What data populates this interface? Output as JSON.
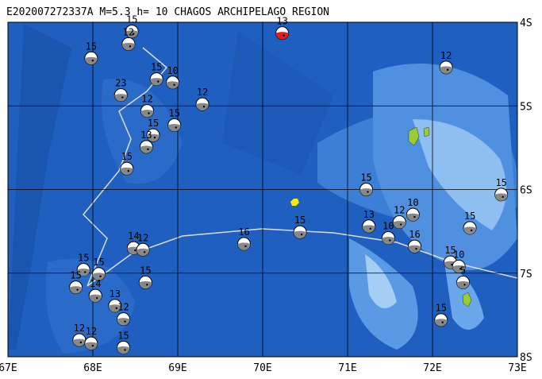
{
  "title": "E202007272337A  M=5.3 h= 10 CHAGOS ARCHIPELAGO REGION",
  "x_labels": [
    "67E",
    "68E",
    "69E",
    "70E",
    "71E",
    "72E",
    "73E"
  ],
  "y_labels": [
    "4S",
    "5S",
    "6S",
    "7S",
    "8S"
  ],
  "events": [
    {
      "label": "13",
      "lon": 70.23,
      "lat": -4.13,
      "color": "#e02020"
    },
    {
      "label": "15",
      "lon": 67.98,
      "lat": -4.43
    },
    {
      "label": "15",
      "lon": 68.46,
      "lat": -4.11
    },
    {
      "label": "12",
      "lon": 68.42,
      "lat": -4.26
    },
    {
      "label": "23",
      "lon": 68.33,
      "lat": -4.87
    },
    {
      "label": "10",
      "lon": 68.94,
      "lat": -4.72
    },
    {
      "label": "15",
      "lon": 68.75,
      "lat": -4.68
    },
    {
      "label": "12",
      "lon": 69.29,
      "lat": -4.98
    },
    {
      "label": "15",
      "lon": 68.96,
      "lat": -5.23
    },
    {
      "label": "12",
      "lon": 68.64,
      "lat": -5.06
    },
    {
      "label": "15",
      "lon": 68.71,
      "lat": -5.35
    },
    {
      "label": "15",
      "lon": 68.4,
      "lat": -5.75
    },
    {
      "label": "13",
      "lon": 68.63,
      "lat": -5.49
    },
    {
      "label": "12",
      "lon": 72.16,
      "lat": -4.54
    },
    {
      "label": "15",
      "lon": 71.22,
      "lat": -6.0
    },
    {
      "label": "15",
      "lon": 72.81,
      "lat": -6.06
    },
    {
      "label": "10",
      "lon": 71.77,
      "lat": -6.3
    },
    {
      "label": "12",
      "lon": 71.61,
      "lat": -6.39
    },
    {
      "label": "13",
      "lon": 71.25,
      "lat": -6.44
    },
    {
      "label": "15",
      "lon": 70.44,
      "lat": -6.51
    },
    {
      "label": "16",
      "lon": 69.78,
      "lat": -6.65
    },
    {
      "label": "15",
      "lon": 72.44,
      "lat": -6.46
    },
    {
      "label": "16",
      "lon": 71.79,
      "lat": -6.68
    },
    {
      "label": "10",
      "lon": 71.48,
      "lat": -6.58
    },
    {
      "label": "14",
      "lon": 68.48,
      "lat": -6.7
    },
    {
      "label": "12",
      "lon": 68.59,
      "lat": -6.72
    },
    {
      "label": "15",
      "lon": 68.62,
      "lat": -7.11
    },
    {
      "label": "15",
      "lon": 72.21,
      "lat": -6.87
    },
    {
      "label": "10",
      "lon": 72.31,
      "lat": -6.92
    },
    {
      "label": "5",
      "lon": 72.36,
      "lat": -7.11
    },
    {
      "label": "15",
      "lon": 67.89,
      "lat": -6.96
    },
    {
      "label": "15",
      "lon": 68.07,
      "lat": -7.01
    },
    {
      "label": "15",
      "lon": 67.8,
      "lat": -7.17
    },
    {
      "label": "14",
      "lon": 68.03,
      "lat": -7.27
    },
    {
      "label": "13",
      "lon": 68.26,
      "lat": -7.39
    },
    {
      "label": "12",
      "lon": 68.36,
      "lat": -7.55
    },
    {
      "label": "12",
      "lon": 67.84,
      "lat": -7.8
    },
    {
      "label": "12",
      "lon": 67.98,
      "lat": -7.84
    },
    {
      "label": "15",
      "lon": 68.36,
      "lat": -7.89
    },
    {
      "label": "15",
      "lon": 72.1,
      "lat": -7.56
    }
  ]
}
